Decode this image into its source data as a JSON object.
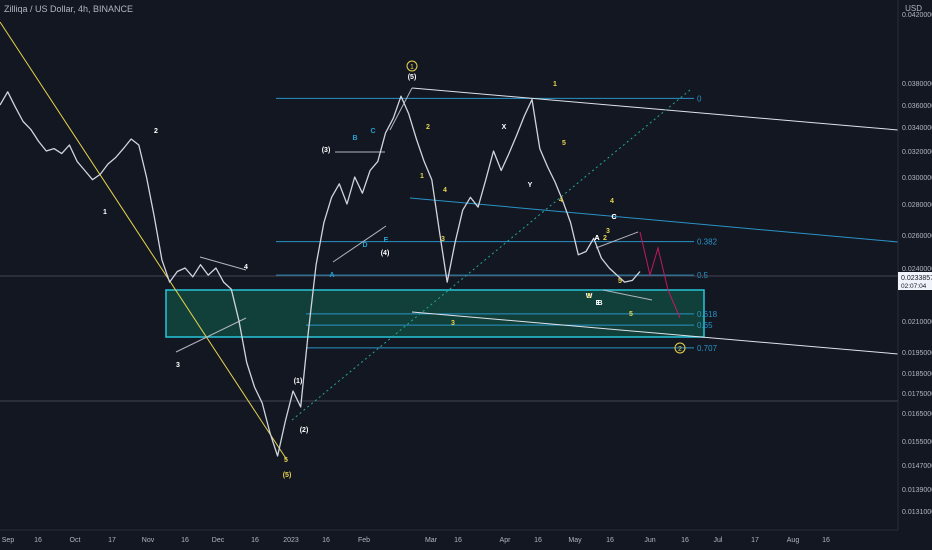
{
  "header": {
    "title": "Zilliqa / US Dollar, 4h, BINANCE",
    "currency": "USD"
  },
  "price_box": {
    "value": "0.02338573",
    "countdown": "02:07:04"
  },
  "chart_data": {
    "type": "line",
    "title": "Zilliqa / US Dollar, 4h, BINANCE",
    "xlabel": "",
    "ylabel": "USD",
    "grid": false,
    "x_ticks": [
      "Sep",
      "16",
      "Oct",
      "17",
      "Nov",
      "16",
      "Dec",
      "16",
      "2023",
      "16",
      "Feb",
      "Mar",
      "16",
      "Apr",
      "16",
      "May",
      "16",
      "Jun",
      "16",
      "Jul",
      "17",
      "Aug",
      "16"
    ],
    "y_ticks": [
      "0.04200000",
      "0.03800000",
      "0.03600000",
      "0.03400000",
      "0.03200000",
      "0.03000000",
      "0.02800000",
      "0.02600000",
      "0.02400000",
      "0.02100000",
      "0.01950000",
      "0.01850000",
      "0.01750000",
      "0.01650000",
      "0.01550000",
      "0.01470000",
      "0.01390000",
      "0.01310000"
    ],
    "last_price": 0.02338573,
    "series": [
      {
        "values": [
          0.036,
          0.0372,
          0.0358,
          0.0345,
          0.0338,
          0.0328,
          0.032,
          0.0322,
          0.0318,
          0.0325,
          0.0312,
          0.0305,
          0.0298,
          0.0302,
          0.031,
          0.0315,
          0.0322,
          0.033,
          0.0325,
          0.03,
          0.0272,
          0.0245,
          0.0232,
          0.0238,
          0.024,
          0.0235,
          0.0242,
          0.0236,
          0.024,
          0.0232,
          0.0228,
          0.021,
          0.019,
          0.0178,
          0.017,
          0.0158,
          0.015,
          0.0162,
          0.0176,
          0.0168,
          0.0205,
          0.0242,
          0.0268,
          0.0285,
          0.0295,
          0.028,
          0.03,
          0.0288,
          0.0305,
          0.0312,
          0.0335,
          0.0348,
          0.0368,
          0.0352,
          0.033,
          0.0312,
          0.0298,
          0.0262,
          0.0232,
          0.0255,
          0.0276,
          0.0285,
          0.0278,
          0.0298,
          0.032,
          0.0305,
          0.0318,
          0.0333,
          0.035,
          0.0365,
          0.0322,
          0.0308,
          0.0296,
          0.0282,
          0.0268,
          0.0248,
          0.025,
          0.0258,
          0.0246,
          0.024,
          0.0236,
          0.0232,
          0.0233,
          0.0238
        ]
      }
    ],
    "fib_levels": [
      {
        "label": "0",
        "price": 0.0366
      },
      {
        "label": "0.382",
        "price": 0.0256
      },
      {
        "label": "0.5",
        "price": 0.0236
      },
      {
        "label": "0.618",
        "price": 0.0214
      },
      {
        "label": "0.65",
        "price": 0.0208
      },
      {
        "label": "0.707",
        "price": 0.0197
      }
    ],
    "wave_labels": [
      "1",
      "2",
      "3",
      "4",
      "5",
      "(1)",
      "(2)",
      "(3)",
      "(4)",
      "(5)",
      "(5)",
      "A",
      "B",
      "C",
      "D",
      "E",
      "A",
      "C",
      "E",
      "3",
      "4",
      "5",
      "1",
      "2",
      "3",
      "4",
      "5",
      "W",
      "X",
      "Y",
      "1",
      "2",
      "3",
      "4",
      "5",
      "A",
      "B",
      "C",
      "3"
    ],
    "circled_labels": [
      "1",
      "2"
    ],
    "colors": {
      "background": "#131722",
      "candles": "#d1d4dc",
      "fib": "#2a93c6",
      "zone_fill": "#0f8c6a",
      "zone_border": "#26c6da",
      "wave_yellow": "#e8d44d",
      "wave_white": "#ffffff",
      "wave_cyan": "#2aa1d0",
      "projection": "#c2185b",
      "trend": "#b2b5be"
    }
  }
}
